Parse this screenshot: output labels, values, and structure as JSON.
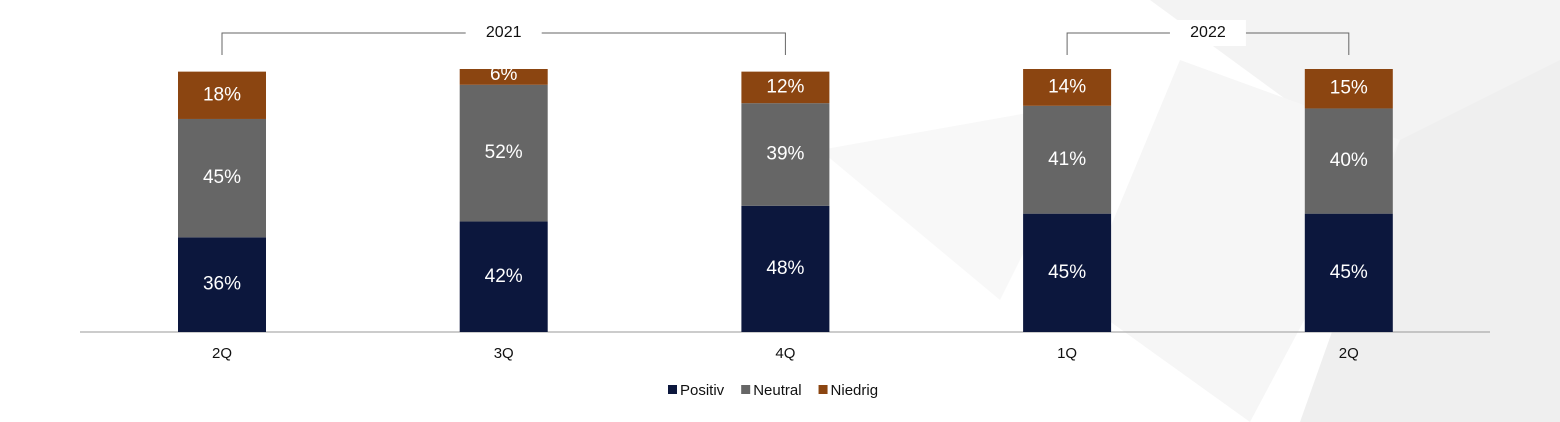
{
  "chart_data": {
    "type": "stacked-bar",
    "categories": [
      "2Q",
      "3Q",
      "4Q",
      "1Q",
      "2Q"
    ],
    "groups": [
      {
        "label": "2021",
        "count": 3
      },
      {
        "label": "2022",
        "count": 2
      }
    ],
    "series": [
      {
        "name": "Positiv",
        "color": "#0c173d",
        "values": [
          36,
          42,
          48,
          45,
          45
        ],
        "value_labels": [
          "36%",
          "42%",
          "48%",
          "45%",
          "45%"
        ]
      },
      {
        "name": "Neutral",
        "color": "#666666",
        "values": [
          45,
          52,
          39,
          41,
          40
        ],
        "value_labels": [
          "45%",
          "52%",
          "39%",
          "41%",
          "40%"
        ]
      },
      {
        "name": "Niedrig",
        "color": "#8b4511",
        "values": [
          18,
          6,
          12,
          14,
          15
        ],
        "value_labels": [
          "18%",
          "6%",
          "12%",
          "14%",
          "15%"
        ]
      }
    ],
    "legend": "bottom"
  }
}
